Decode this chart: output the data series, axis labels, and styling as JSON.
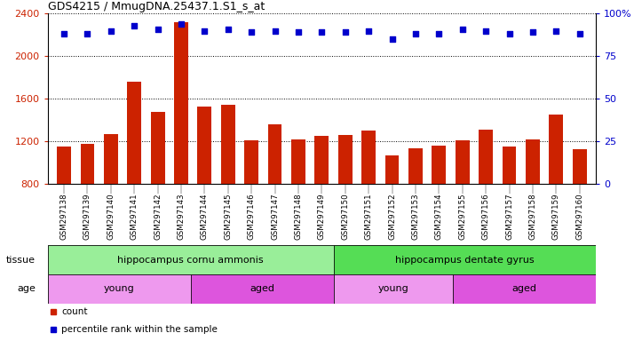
{
  "title": "GDS4215 / MmugDNA.25437.1.S1_s_at",
  "samples": [
    "GSM297138",
    "GSM297139",
    "GSM297140",
    "GSM297141",
    "GSM297142",
    "GSM297143",
    "GSM297144",
    "GSM297145",
    "GSM297146",
    "GSM297147",
    "GSM297148",
    "GSM297149",
    "GSM297150",
    "GSM297151",
    "GSM297152",
    "GSM297153",
    "GSM297154",
    "GSM297155",
    "GSM297156",
    "GSM297157",
    "GSM297158",
    "GSM297159",
    "GSM297160"
  ],
  "counts": [
    1155,
    1175,
    1270,
    1760,
    1480,
    2320,
    1530,
    1545,
    1215,
    1360,
    1220,
    1250,
    1265,
    1300,
    1070,
    1140,
    1165,
    1215,
    1310,
    1150,
    1220,
    1450,
    1130
  ],
  "percentiles": [
    88,
    88,
    90,
    93,
    91,
    94,
    90,
    91,
    89,
    90,
    89,
    89,
    89,
    90,
    85,
    88,
    88,
    91,
    90,
    88,
    89,
    90,
    88
  ],
  "bar_color": "#cc2200",
  "dot_color": "#0000cc",
  "ylim_left": [
    800,
    2400
  ],
  "ylim_right": [
    0,
    100
  ],
  "yticks_left": [
    800,
    1200,
    1600,
    2000,
    2400
  ],
  "yticks_right": [
    0,
    25,
    50,
    75,
    100
  ],
  "yticklabels_right": [
    "0",
    "25",
    "50",
    "75",
    "100%"
  ],
  "tissue_groups": [
    {
      "label": "hippocampus cornu ammonis",
      "start": 0,
      "end": 12,
      "color": "#99ee99"
    },
    {
      "label": "hippocampus dentate gyrus",
      "start": 12,
      "end": 23,
      "color": "#55dd55"
    }
  ],
  "age_groups": [
    {
      "label": "young",
      "start": 0,
      "end": 6,
      "color": "#ee99ee"
    },
    {
      "label": "aged",
      "start": 6,
      "end": 12,
      "color": "#dd55dd"
    },
    {
      "label": "young",
      "start": 12,
      "end": 17,
      "color": "#ee99ee"
    },
    {
      "label": "aged",
      "start": 17,
      "end": 23,
      "color": "#dd55dd"
    }
  ],
  "legend_count_label": "count",
  "legend_pct_label": "percentile rank within the sample",
  "tissue_label": "tissue",
  "age_label": "age",
  "background_color": "#e8e8e8",
  "chart_bg": "#ffffff",
  "xtick_area_color": "#d8d8d8"
}
